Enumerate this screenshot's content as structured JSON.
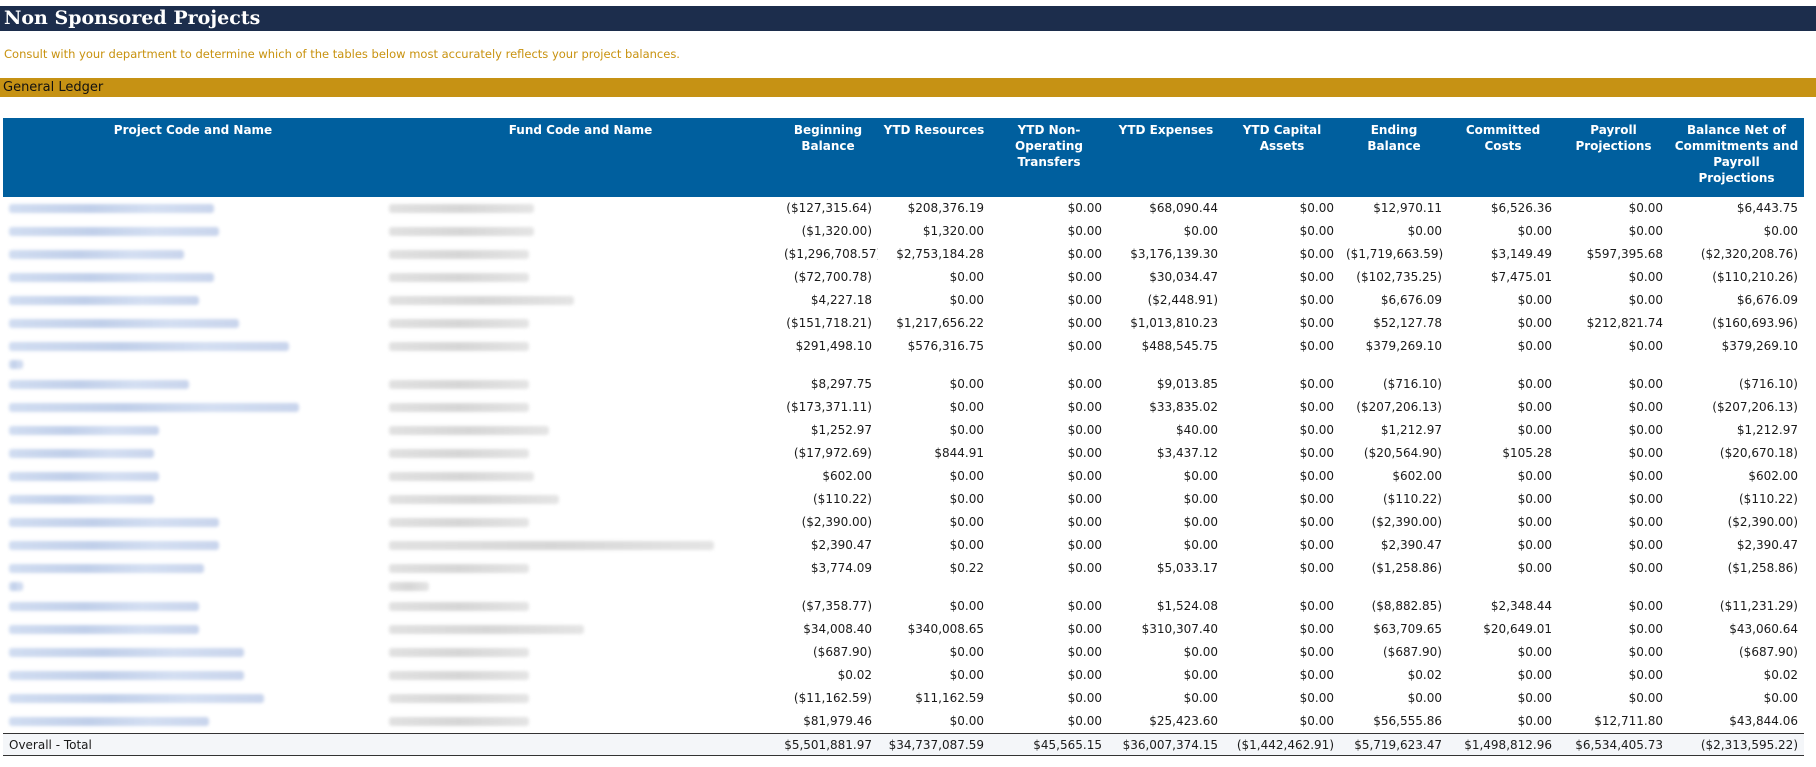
{
  "page": {
    "title": "Non Sponsored Projects",
    "notice": "Consult with your department to determine which of the tables below most accurately reflects your project balances."
  },
  "section": {
    "label": "General Ledger"
  },
  "table": {
    "columns": [
      "Project Code and Name",
      "Fund Code and Name",
      "Beginning Balance",
      "YTD Resources",
      "YTD Non-Operating Transfers",
      "YTD Expenses",
      "YTD Capital Assets",
      "Ending Balance",
      "Committed Costs",
      "Payroll Projections",
      "Balance Net of Commitments and Payroll Projections"
    ],
    "rows": [
      {
        "values": [
          "($127,315.64)",
          "$208,376.19",
          "$0.00",
          "$68,090.44",
          "$0.00",
          "$12,970.11",
          "$6,526.36",
          "$0.00",
          "$6,443.75"
        ]
      },
      {
        "values": [
          "($1,320.00)",
          "$1,320.00",
          "$0.00",
          "$0.00",
          "$0.00",
          "$0.00",
          "$0.00",
          "$0.00",
          "$0.00"
        ]
      },
      {
        "values": [
          "($1,296,708.57)",
          "$2,753,184.28",
          "$0.00",
          "$3,176,139.30",
          "$0.00",
          "($1,719,663.59)",
          "$3,149.49",
          "$597,395.68",
          "($2,320,208.76)"
        ]
      },
      {
        "values": [
          "($72,700.78)",
          "$0.00",
          "$0.00",
          "$30,034.47",
          "$0.00",
          "($102,735.25)",
          "$7,475.01",
          "$0.00",
          "($110,210.26)"
        ]
      },
      {
        "values": [
          "$4,227.18",
          "$0.00",
          "$0.00",
          "($2,448.91)",
          "$0.00",
          "$6,676.09",
          "$0.00",
          "$0.00",
          "$6,676.09"
        ]
      },
      {
        "values": [
          "($151,718.21)",
          "$1,217,656.22",
          "$0.00",
          "$1,013,810.23",
          "$0.00",
          "$52,127.78",
          "$0.00",
          "$212,821.74",
          "($160,693.96)"
        ]
      },
      {
        "values": [
          "$291,498.10",
          "$576,316.75",
          "$0.00",
          "$488,545.75",
          "$0.00",
          "$379,269.10",
          "$0.00",
          "$0.00",
          "$379,269.10"
        ],
        "tall": true
      },
      {
        "values": [
          "$8,297.75",
          "$0.00",
          "$0.00",
          "$9,013.85",
          "$0.00",
          "($716.10)",
          "$0.00",
          "$0.00",
          "($716.10)"
        ]
      },
      {
        "values": [
          "($173,371.11)",
          "$0.00",
          "$0.00",
          "$33,835.02",
          "$0.00",
          "($207,206.13)",
          "$0.00",
          "$0.00",
          "($207,206.13)"
        ]
      },
      {
        "values": [
          "$1,252.97",
          "$0.00",
          "$0.00",
          "$40.00",
          "$0.00",
          "$1,212.97",
          "$0.00",
          "$0.00",
          "$1,212.97"
        ]
      },
      {
        "values": [
          "($17,972.69)",
          "$844.91",
          "$0.00",
          "$3,437.12",
          "$0.00",
          "($20,564.90)",
          "$105.28",
          "$0.00",
          "($20,670.18)"
        ]
      },
      {
        "values": [
          "$602.00",
          "$0.00",
          "$0.00",
          "$0.00",
          "$0.00",
          "$602.00",
          "$0.00",
          "$0.00",
          "$602.00"
        ]
      },
      {
        "values": [
          "($110.22)",
          "$0.00",
          "$0.00",
          "$0.00",
          "$0.00",
          "($110.22)",
          "$0.00",
          "$0.00",
          "($110.22)"
        ]
      },
      {
        "values": [
          "($2,390.00)",
          "$0.00",
          "$0.00",
          "$0.00",
          "$0.00",
          "($2,390.00)",
          "$0.00",
          "$0.00",
          "($2,390.00)"
        ]
      },
      {
        "values": [
          "$2,390.47",
          "$0.00",
          "$0.00",
          "$0.00",
          "$0.00",
          "$2,390.47",
          "$0.00",
          "$0.00",
          "$2,390.47"
        ]
      },
      {
        "values": [
          "$3,774.09",
          "$0.22",
          "$0.00",
          "$5,033.17",
          "$0.00",
          "($1,258.86)",
          "$0.00",
          "$0.00",
          "($1,258.86)"
        ],
        "tall": true
      },
      {
        "values": [
          "($7,358.77)",
          "$0.00",
          "$0.00",
          "$1,524.08",
          "$0.00",
          "($8,882.85)",
          "$2,348.44",
          "$0.00",
          "($11,231.29)"
        ]
      },
      {
        "values": [
          "$34,008.40",
          "$340,008.65",
          "$0.00",
          "$310,307.40",
          "$0.00",
          "$63,709.65",
          "$20,649.01",
          "$0.00",
          "$43,060.64"
        ]
      },
      {
        "values": [
          "($687.90)",
          "$0.00",
          "$0.00",
          "$0.00",
          "$0.00",
          "($687.90)",
          "$0.00",
          "$0.00",
          "($687.90)"
        ]
      },
      {
        "values": [
          "$0.02",
          "$0.00",
          "$0.00",
          "$0.00",
          "$0.00",
          "$0.02",
          "$0.00",
          "$0.00",
          "$0.02"
        ]
      },
      {
        "values": [
          "($11,162.59)",
          "$11,162.59",
          "$0.00",
          "$0.00",
          "$0.00",
          "$0.00",
          "$0.00",
          "$0.00",
          "$0.00"
        ]
      },
      {
        "values": [
          "$81,979.46",
          "$0.00",
          "$0.00",
          "$25,423.60",
          "$0.00",
          "$56,555.86",
          "$0.00",
          "$12,711.80",
          "$43,844.06"
        ]
      }
    ],
    "total": {
      "label": "Overall - Total",
      "values": [
        "$5,501,881.97",
        "$34,737,087.59",
        "$45,565.15",
        "$36,007,374.15",
        "($1,442,462.91)",
        "$5,719,623.47",
        "$1,498,812.96",
        "$6,534,405.73",
        "($2,313,595.22)"
      ]
    }
  },
  "colors": {
    "title_bar": "#1c2d4c",
    "notice_text": "#c8920f",
    "section_bar": "#c69214",
    "header_bg": "#005f9e"
  }
}
